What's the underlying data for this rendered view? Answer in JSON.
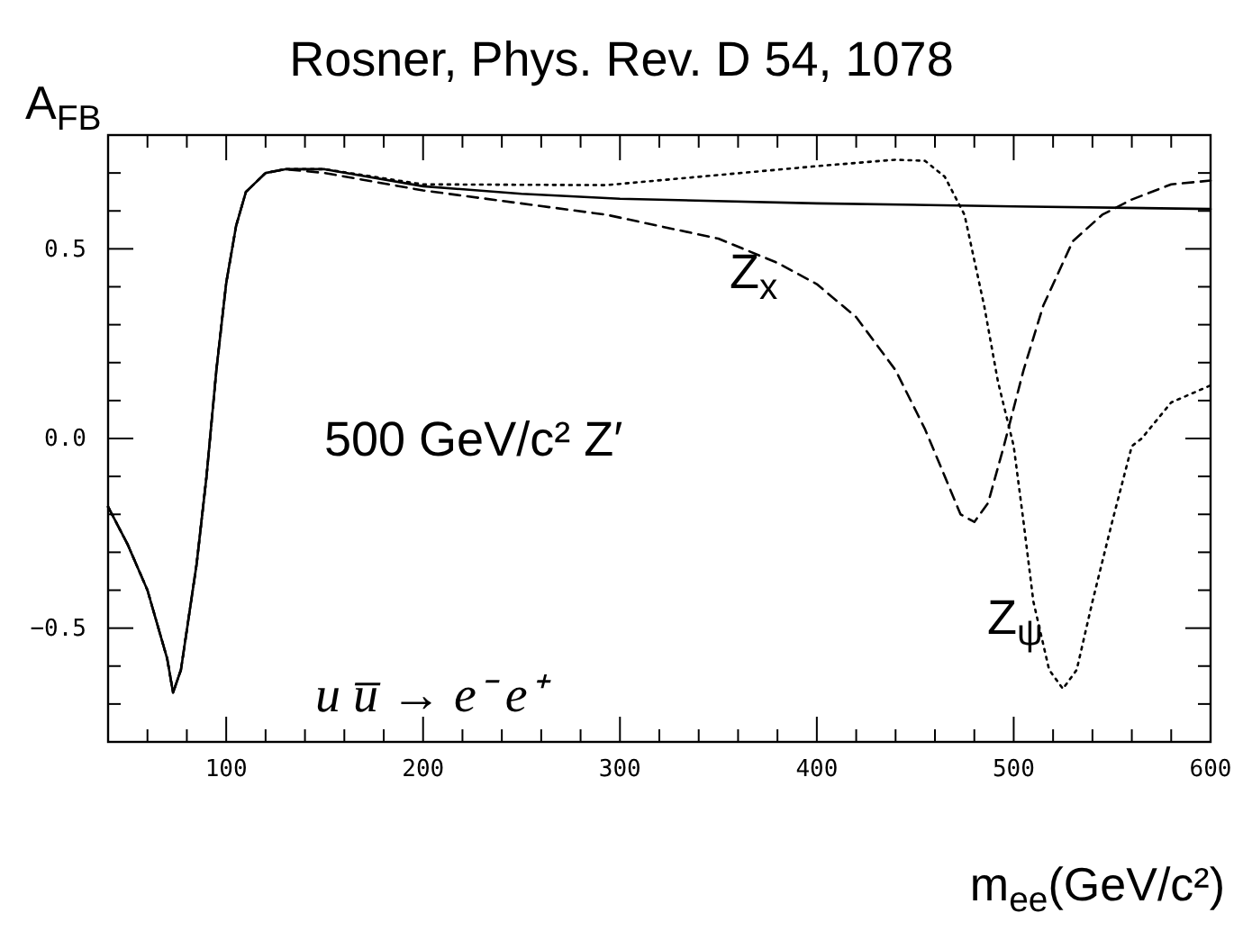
{
  "chart_data": {
    "type": "line",
    "title": "Rosner, Phys. Rev. D 54, 1078",
    "xlabel": "m$_{ee}$(GeV/c²)",
    "ylabel": "A$_{FB}$",
    "xlim": [
      40,
      600
    ],
    "ylim": [
      -0.8,
      0.8
    ],
    "xticks": [
      {
        "value": 40,
        "label": null
      },
      {
        "value": 60,
        "label": null
      },
      {
        "value": 80,
        "label": null
      },
      100,
      {
        "value": 120,
        "label": null
      },
      {
        "value": 140,
        "label": null
      },
      {
        "value": 160,
        "label": null
      },
      {
        "value": 180,
        "label": null
      },
      200,
      {
        "value": 220,
        "label": null
      },
      {
        "value": 240,
        "label": null
      },
      {
        "value": 260,
        "label": null
      },
      {
        "value": 280,
        "label": null
      },
      300,
      {
        "value": 320,
        "label": null
      },
      {
        "value": 340,
        "label": null
      },
      {
        "value": 360,
        "label": null
      },
      {
        "value": 380,
        "label": null
      },
      400,
      {
        "value": 420,
        "label": null
      },
      {
        "value": 440,
        "label": null
      },
      {
        "value": 460,
        "label": null
      },
      {
        "value": 480,
        "label": null
      },
      500,
      {
        "value": 520,
        "label": null
      },
      {
        "value": 540,
        "label": null
      },
      {
        "value": 560,
        "label": null
      },
      {
        "value": 580,
        "label": null
      },
      600
    ],
    "yticks": [
      {
        "value": -0.7,
        "label": null
      },
      {
        "value": -0.6,
        "label": null
      },
      {
        "value": -0.5,
        "label": "−0.5"
      },
      {
        "value": -0.4,
        "label": null
      },
      {
        "value": -0.3,
        "label": null
      },
      {
        "value": -0.2,
        "label": null
      },
      {
        "value": -0.1,
        "label": null
      },
      {
        "value": 0,
        "label": "0.0"
      },
      {
        "value": 0.1,
        "label": null
      },
      {
        "value": 0.2,
        "label": null
      },
      {
        "value": 0.3,
        "label": null
      },
      {
        "value": 0.4,
        "label": null
      },
      0.5,
      {
        "value": 0.6,
        "label": null
      },
      {
        "value": 0.7,
        "label": null
      }
    ],
    "grid": false,
    "marker": "none",
    "series": [
      {
        "color": "#000000",
        "line_style": "solid",
        "x": [
          40,
          50,
          60,
          70,
          73,
          77,
          85,
          90,
          95,
          100,
          105,
          110,
          120,
          130,
          150,
          200,
          250,
          300,
          400,
          500,
          600
        ],
        "values": [
          -0.18,
          -0.28,
          -0.4,
          -0.58,
          -0.67,
          -0.61,
          -0.33,
          -0.1,
          0.18,
          0.41,
          0.56,
          0.65,
          0.7,
          0.71,
          0.71,
          0.665,
          0.645,
          0.632,
          0.62,
          0.612,
          0.605
        ]
      },
      {
        "color": "#000000",
        "line_style": "dashed",
        "x": [
          40,
          50,
          60,
          70,
          73,
          77,
          85,
          90,
          95,
          100,
          105,
          110,
          120,
          130,
          150,
          200,
          293,
          350,
          380,
          400,
          420,
          440,
          455,
          465,
          473,
          480,
          487,
          495,
          505,
          515,
          530,
          545,
          560,
          580,
          600
        ],
        "values": [
          -0.18,
          -0.28,
          -0.4,
          -0.58,
          -0.67,
          -0.61,
          -0.33,
          -0.1,
          0.18,
          0.41,
          0.56,
          0.65,
          0.7,
          0.71,
          0.7,
          0.654,
          0.59,
          0.527,
          0.463,
          0.407,
          0.32,
          0.18,
          0.024,
          -0.1,
          -0.2,
          -0.22,
          -0.17,
          -0.02,
          0.18,
          0.35,
          0.52,
          0.59,
          0.63,
          0.67,
          0.68
        ]
      },
      {
        "color": "#000000",
        "line_style": "dotted",
        "x": [
          40,
          50,
          60,
          70,
          73,
          77,
          85,
          90,
          95,
          100,
          105,
          110,
          120,
          130,
          150,
          200,
          293,
          400,
          440,
          455,
          465,
          475,
          485,
          492,
          500,
          505,
          510,
          518,
          525,
          532,
          540,
          550,
          560,
          565,
          580,
          600
        ],
        "values": [
          -0.18,
          -0.28,
          -0.4,
          -0.58,
          -0.67,
          -0.61,
          -0.33,
          -0.1,
          0.18,
          0.41,
          0.56,
          0.65,
          0.7,
          0.71,
          0.71,
          0.67,
          0.668,
          0.718,
          0.735,
          0.732,
          0.69,
          0.59,
          0.35,
          0.15,
          -0.02,
          -0.22,
          -0.43,
          -0.61,
          -0.66,
          -0.61,
          -0.43,
          -0.22,
          -0.02,
          0,
          0.095,
          0.14
        ]
      }
    ],
    "annotations": [
      "Z$_{x}$",
      "Z$_{ψ}$",
      "500 GeV/c² Z′",
      "u u̅  →  e⁻ e⁺"
    ]
  }
}
